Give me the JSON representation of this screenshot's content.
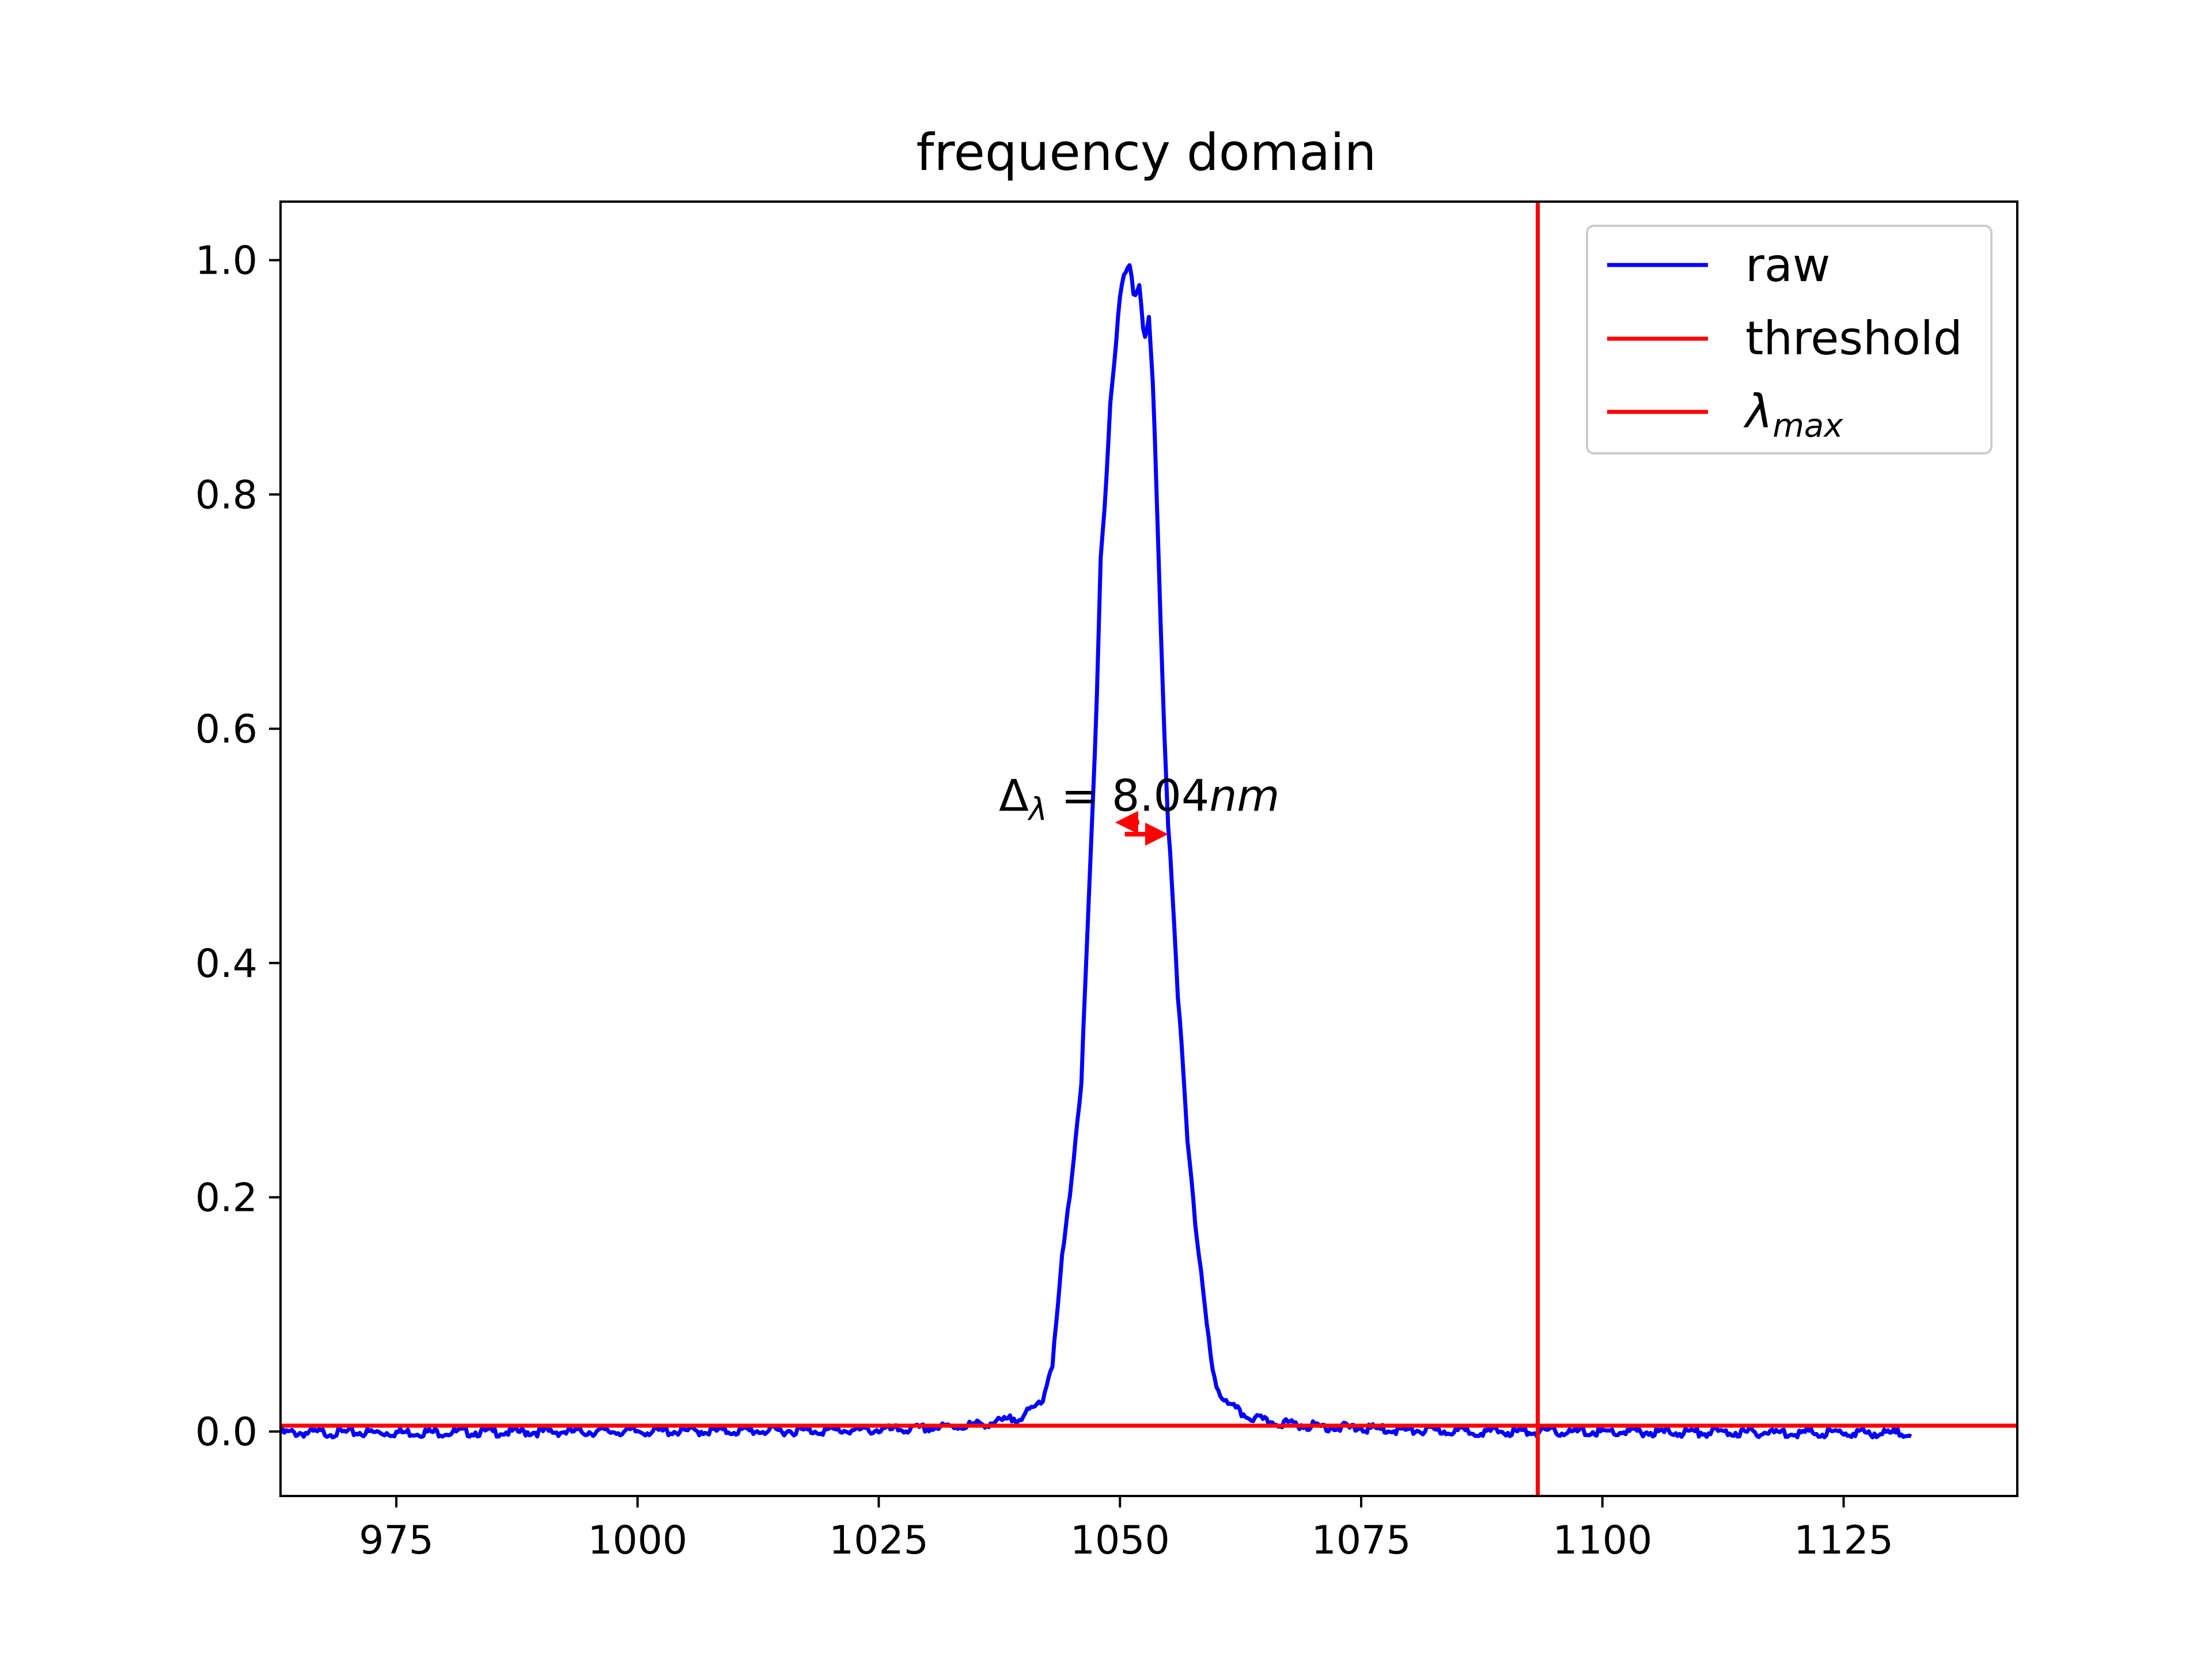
{
  "chart_data": {
    "type": "line",
    "title": "frequency domain",
    "xlabel": "",
    "ylabel": "",
    "xlim": [
      963,
      1143
    ],
    "ylim": [
      -0.055,
      1.05
    ],
    "xticks": [
      975,
      1000,
      1025,
      1050,
      1075,
      1100,
      1125
    ],
    "xtick_labels": [
      "975",
      "1000",
      "1025",
      "1050",
      "1075",
      "1100",
      "1125"
    ],
    "yticks": [
      0.0,
      0.2,
      0.4,
      0.6,
      0.8,
      1.0
    ],
    "ytick_labels": [
      "0.0",
      "0.2",
      "0.4",
      "0.6",
      "0.8",
      "1.0"
    ],
    "grid": false,
    "legend_position": "upper right",
    "series": [
      {
        "name": "raw",
        "color": "#0000ff",
        "x_start": 963,
        "x_end": 1132,
        "baseline": 0.0,
        "noise_amplitude": 0.004,
        "points": [
          [
            963,
            0.0
          ],
          [
            1020,
            0.002
          ],
          [
            1028,
            0.003
          ],
          [
            1032,
            0.005
          ],
          [
            1035,
            0.007
          ],
          [
            1038,
            0.01
          ],
          [
            1040,
            0.015
          ],
          [
            1041,
            0.02
          ],
          [
            1042,
            0.03
          ],
          [
            1043,
            0.06
          ],
          [
            1043.5,
            0.1
          ],
          [
            1044,
            0.15
          ],
          [
            1044.5,
            0.18
          ],
          [
            1045,
            0.22
          ],
          [
            1045.5,
            0.26
          ],
          [
            1046,
            0.3
          ],
          [
            1046.5,
            0.4
          ],
          [
            1047,
            0.5
          ],
          [
            1047.5,
            0.6
          ],
          [
            1048,
            0.75
          ],
          [
            1048.5,
            0.8
          ],
          [
            1049,
            0.88
          ],
          [
            1049.5,
            0.92
          ],
          [
            1050,
            0.97
          ],
          [
            1050.5,
            0.99
          ],
          [
            1051,
            1.0
          ],
          [
            1051.5,
            0.97
          ],
          [
            1052,
            0.98
          ],
          [
            1052.5,
            0.93
          ],
          [
            1053,
            0.95
          ],
          [
            1053.5,
            0.88
          ],
          [
            1054,
            0.75
          ],
          [
            1054.5,
            0.62
          ],
          [
            1055,
            0.52
          ],
          [
            1055.5,
            0.45
          ],
          [
            1056,
            0.37
          ],
          [
            1056.5,
            0.32
          ],
          [
            1057,
            0.25
          ],
          [
            1057.5,
            0.21
          ],
          [
            1058,
            0.16
          ],
          [
            1058.5,
            0.13
          ],
          [
            1059,
            0.09
          ],
          [
            1059.5,
            0.06
          ],
          [
            1060,
            0.04
          ],
          [
            1061,
            0.025
          ],
          [
            1062,
            0.02
          ],
          [
            1063,
            0.015
          ],
          [
            1065,
            0.01
          ],
          [
            1070,
            0.006
          ],
          [
            1075,
            0.004
          ],
          [
            1080,
            0.002
          ],
          [
            1090,
            0.001
          ],
          [
            1132,
            0.0
          ]
        ]
      },
      {
        "name": "threshold",
        "color": "#ff0000",
        "orientation": "horizontal",
        "y": 0.005
      },
      {
        "name": "λmax",
        "legend_base": "λ",
        "legend_sub": "max",
        "color": "#ff0000",
        "orientation": "vertical",
        "x": 1093.3
      }
    ],
    "annotations": [
      {
        "text_main": "Δ",
        "text_sub": "λ",
        "text_eq": " = 8.04",
        "text_unit": "nm",
        "x": 1052,
        "y": 0.52,
        "color": "#000000"
      }
    ],
    "arrows": [
      {
        "x_from": 1052,
        "x_to": 1049.5,
        "y": 0.52,
        "color": "#ff0000"
      },
      {
        "x_from": 1050.5,
        "x_to": 1055,
        "y": 0.51,
        "color": "#ff0000"
      }
    ]
  }
}
